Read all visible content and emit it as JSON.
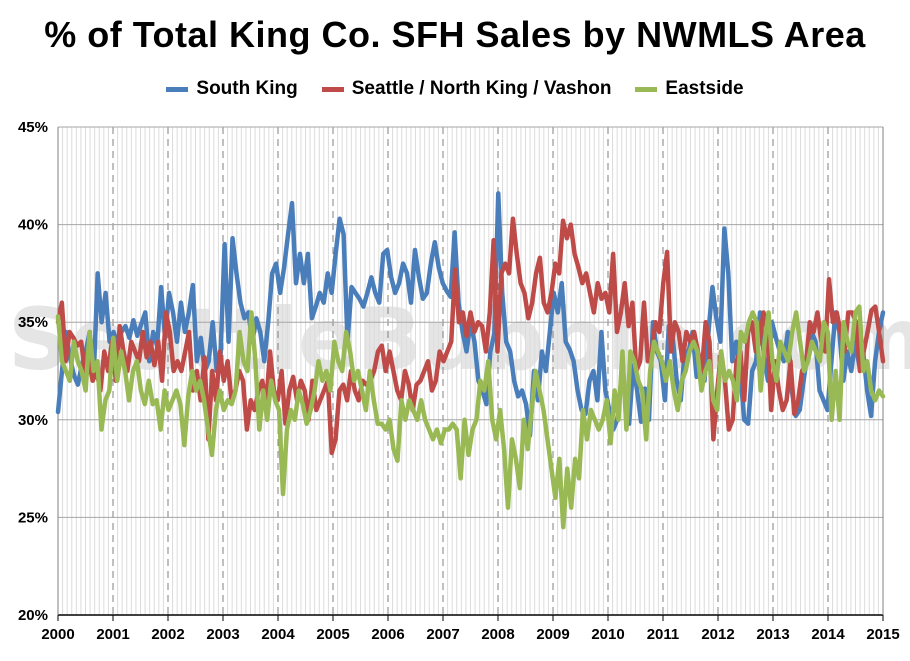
{
  "chart_data": {
    "type": "line",
    "title": "% of Total King Co. SFH Sales by NWMLS Area",
    "xlabel": "",
    "ylabel": "",
    "ylim": [
      20,
      45
    ],
    "xlim": [
      2000,
      2015
    ],
    "y_ticks": [
      "20%",
      "25%",
      "30%",
      "35%",
      "40%",
      "45%"
    ],
    "x_ticks": [
      "2000",
      "2001",
      "2002",
      "2003",
      "2004",
      "2005",
      "2006",
      "2007",
      "2008",
      "2009",
      "2010",
      "2011",
      "2012",
      "2013",
      "2014",
      "2015"
    ],
    "grid": true,
    "legend_position": "top",
    "series": [
      {
        "name": "South King",
        "color": "#4a7ebb",
        "values": [
          30.4,
          32.5,
          34.5,
          33.2,
          32.3,
          31.8,
          32.8,
          33.5,
          34.5,
          32.2,
          37.5,
          35.0,
          36.5,
          34.0,
          34.5,
          33.9,
          34.5,
          34.8,
          34.2,
          35.1,
          34.3,
          34.9,
          35.5,
          33.0,
          34.5,
          33.8,
          36.8,
          34.2,
          36.5,
          35.5,
          34.0,
          36.0,
          34.5,
          35.5,
          36.9,
          33.0,
          34.2,
          32.5,
          33.0,
          35.0,
          32.5,
          33.4,
          39.0,
          34.0,
          39.3,
          37.5,
          36.0,
          35.2,
          35.5,
          34.0,
          35.2,
          34.5,
          33.0,
          35.0,
          37.5,
          38.0,
          36.5,
          37.8,
          39.5,
          41.1,
          37.0,
          38.5,
          37.0,
          38.5,
          35.2,
          35.8,
          36.5,
          36.0,
          37.5,
          36.5,
          38.5,
          40.3,
          39.5,
          34.0,
          36.8,
          36.5,
          36.2,
          35.8,
          36.5,
          37.3,
          36.5,
          36.0,
          38.5,
          38.7,
          37.3,
          36.5,
          37.0,
          38.0,
          37.5,
          36.0,
          38.7,
          37.3,
          36.2,
          36.5,
          38.0,
          39.1,
          37.8,
          37.0,
          36.6,
          36.3,
          39.6,
          36.0,
          34.5,
          33.5,
          35.0,
          34.0,
          32.0,
          31.5,
          30.8,
          33.5,
          34.4,
          41.6,
          36.5,
          34.0,
          33.5,
          32.0,
          31.2,
          31.5,
          30.8,
          29.2,
          32.5,
          31.0,
          33.5,
          32.5,
          34.5,
          36.5,
          35.5,
          37.0,
          34.0,
          33.6,
          33.0,
          31.5,
          30.5,
          30.3,
          32.0,
          32.5,
          31.0,
          34.5,
          31.5,
          30.5,
          29.5,
          30.0,
          32.0,
          31.5,
          29.8,
          32.8,
          31.5,
          29.9,
          31.6,
          30.0,
          35.0,
          33.5,
          33.0,
          31.0,
          34.8,
          34.2,
          32.0,
          31.0,
          33.5,
          33.5,
          34.5,
          32.2,
          33.2,
          32.0,
          34.5,
          36.8,
          35.2,
          34.0,
          39.8,
          37.5,
          33.0,
          34.0,
          32.5,
          30.0,
          29.8,
          32.5,
          33.0,
          35.5,
          33.2,
          32.0,
          35.0,
          34.2,
          33.5,
          33.0,
          34.5,
          31.5,
          30.2,
          30.5,
          32.0,
          33.5,
          34.5,
          34.0,
          31.5,
          31.0,
          30.5,
          33.0,
          35.5,
          34.5,
          32.0,
          33.5,
          32.5,
          34.0,
          32.8,
          33.5,
          31.5,
          30.2,
          33.0,
          34.5,
          35.5
        ]
      },
      {
        "name": "Seattle / North King / Vashon",
        "color": "#be4b48",
        "values": [
          35.0,
          36.0,
          33.0,
          34.5,
          34.2,
          33.8,
          34.0,
          32.5,
          33.0,
          32.0,
          32.5,
          31.5,
          33.5,
          32.5,
          34.0,
          32.0,
          34.8,
          33.5,
          32.5,
          34.0,
          33.5,
          33.0,
          34.5,
          33.2,
          34.0,
          32.8,
          34.0,
          32.0,
          35.5,
          34.5,
          32.5,
          33.0,
          32.5,
          33.5,
          34.5,
          31.5,
          32.5,
          31.0,
          33.2,
          29.0,
          32.5,
          31.0,
          33.5,
          32.0,
          33.0,
          31.0,
          31.5,
          32.5,
          32.0,
          29.5,
          31.0,
          30.5,
          31.5,
          32.0,
          30.8,
          33.5,
          31.5,
          31.0,
          32.5,
          29.8,
          31.5,
          32.2,
          31.0,
          32.0,
          31.5,
          30.0,
          32.0,
          30.5,
          31.0,
          31.5,
          32.0,
          28.3,
          29.0,
          31.5,
          31.8,
          31.0,
          32.5,
          31.5,
          31.0,
          32.0,
          31.8,
          32.0,
          32.5,
          33.5,
          33.8,
          32.5,
          33.5,
          32.5,
          31.5,
          31.0,
          32.5,
          31.8,
          30.5,
          31.8,
          32.0,
          32.5,
          33.0,
          31.5,
          32.0,
          33.5,
          33.0,
          33.5,
          34.0,
          37.7,
          35.0,
          35.5,
          34.3,
          35.5,
          34.5,
          35.0,
          34.8,
          33.5,
          35.5,
          39.2,
          33.5,
          37.5,
          38.0,
          37.5,
          40.3,
          38.5,
          37.0,
          36.5,
          35.2,
          36.0,
          37.5,
          38.3,
          36.0,
          35.5,
          36.5,
          38.0,
          37.5,
          40.2,
          39.3,
          40.0,
          38.5,
          37.8,
          37.0,
          37.5,
          36.5,
          35.5,
          37.0,
          36.2,
          36.5,
          35.5,
          38.5,
          34.5,
          35.5,
          37.0,
          34.8,
          36.0,
          32.5,
          33.0,
          36.0,
          33.0,
          33.5,
          35.0,
          34.5,
          37.0,
          38.6,
          33.5,
          35.0,
          34.5,
          33.0,
          34.5,
          34.0,
          34.5,
          33.5,
          32.5,
          35.0,
          34.0,
          29.0,
          31.5,
          33.5,
          32.0,
          29.5,
          30.0,
          33.0,
          33.5,
          31.0,
          34.5,
          35.0,
          33.5,
          34.0,
          35.5,
          34.5,
          30.5,
          33.0,
          31.5,
          30.5,
          31.0,
          33.0,
          30.3,
          31.0,
          32.5,
          32.8,
          35.0,
          34.5,
          35.5,
          34.0,
          33.5,
          37.2,
          35.0,
          35.5,
          34.5,
          33.5,
          35.5,
          35.5,
          35.0,
          32.5,
          33.5,
          34.5,
          35.6,
          35.8,
          34.5,
          33.0
        ]
      },
      {
        "name": "Eastside",
        "color": "#98b954",
        "values": [
          35.3,
          33.0,
          32.5,
          32.0,
          34.0,
          33.0,
          32.5,
          31.5,
          34.5,
          32.5,
          33.0,
          29.5,
          31.0,
          31.5,
          34.2,
          32.0,
          33.5,
          32.5,
          31.0,
          32.5,
          33.0,
          31.5,
          30.8,
          32.0,
          30.8,
          31.0,
          29.5,
          31.5,
          30.5,
          31.0,
          31.5,
          30.8,
          28.7,
          31.2,
          32.5,
          31.5,
          32.0,
          31.0,
          29.5,
          28.2,
          30.5,
          31.5,
          30.5,
          31.0,
          30.8,
          31.5,
          34.5,
          33.0,
          32.5,
          35.5,
          33.0,
          29.5,
          31.5,
          30.0,
          32.0,
          31.0,
          30.5,
          26.2,
          29.5,
          30.5,
          30.0,
          31.5,
          30.8,
          29.8,
          30.5,
          31.5,
          33.0,
          32.0,
          32.5,
          31.5,
          34.0,
          33.0,
          32.5,
          34.5,
          33.5,
          32.0,
          32.5,
          31.5,
          30.5,
          32.5,
          31.0,
          29.8,
          29.8,
          29.5,
          30.0,
          28.5,
          27.9,
          31.0,
          30.0,
          31.0,
          30.5,
          30.0,
          31.0,
          30.0,
          29.5,
          29.0,
          29.5,
          28.8,
          29.5,
          29.5,
          29.8,
          29.5,
          27.0,
          30.0,
          28.2,
          29.5,
          30.0,
          32.0,
          31.5,
          33.0,
          30.0,
          29.0,
          30.5,
          28.5,
          25.5,
          29.0,
          28.0,
          26.5,
          30.0,
          28.5,
          30.5,
          32.5,
          31.5,
          30.5,
          29.0,
          27.5,
          26.0,
          28.0,
          24.5,
          27.5,
          25.5,
          28.0,
          27.0,
          30.5,
          29.0,
          30.5,
          30.0,
          29.5,
          30.0,
          31.0,
          28.8,
          31.5,
          30.0,
          33.5,
          29.5,
          33.5,
          33.0,
          32.0,
          31.5,
          29.0,
          32.5,
          34.0,
          33.5,
          33.0,
          32.0,
          33.0,
          31.5,
          30.5,
          32.0,
          32.5,
          33.5,
          34.0,
          33.5,
          31.5,
          32.5,
          33.0,
          31.0,
          30.5,
          33.5,
          32.0,
          32.5,
          32.0,
          31.0,
          34.5,
          34.0,
          35.0,
          35.5,
          35.0,
          31.5,
          34.0,
          35.5,
          33.0,
          32.0,
          34.0,
          33.5,
          33.0,
          34.5,
          35.5,
          34.0,
          32.5,
          33.0,
          34.0,
          33.5,
          33.0,
          35.0,
          34.5,
          30.0,
          32.5,
          30.0,
          35.0,
          34.0,
          33.5,
          35.5,
          35.8,
          32.5,
          33.0,
          31.5,
          31.0,
          31.5,
          31.2
        ]
      }
    ]
  },
  "watermark": "SeattleBubble.com"
}
